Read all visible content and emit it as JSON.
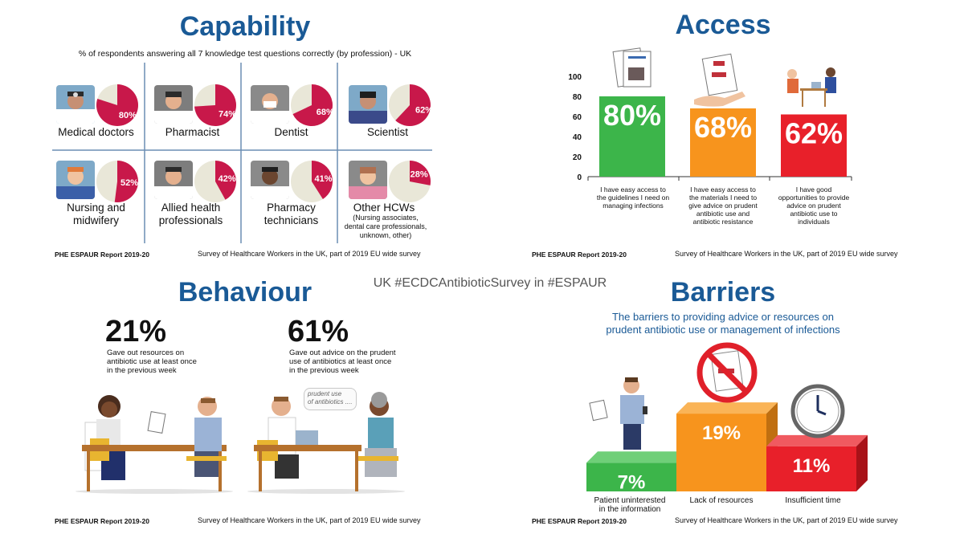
{
  "hashtag": "UK #ECDCAntibioticSurvey in #ESPAUR",
  "footer": {
    "left": "PHE ESPAUR Report 2019-20",
    "right": "Survey of Healthcare Workers in the UK, part of 2019 EU wide survey"
  },
  "capability": {
    "title": "Capability",
    "subtitle": "% of respondents answering all 7 knowledge test questions correctly (by profession) - UK",
    "professions": [
      {
        "label": "Medical doctors",
        "pct_label": "80%",
        "value": 80
      },
      {
        "label": "Pharmacist",
        "pct_label": "74%",
        "value": 74
      },
      {
        "label": "Dentist",
        "pct_label": "68%",
        "value": 68
      },
      {
        "label": "Scientist",
        "pct_label": "62%",
        "value": 62
      },
      {
        "label": "Nursing and midwifery",
        "line1": "Nursing and",
        "line2": "midwifery",
        "pct_label": "52%",
        "value": 52
      },
      {
        "label": "Allied health professionals",
        "line1": "Allied health",
        "line2": "professionals",
        "pct_label": "42%",
        "value": 42
      },
      {
        "label": "Pharmacy technicians",
        "line1": "Pharmacy",
        "line2": "technicians",
        "pct_label": "41%",
        "value": 41
      },
      {
        "label": "Other HCWs",
        "line1": "Other HCWs",
        "note": "(Nursing associates, dental care professionals, unknown, other)",
        "note1": "(Nursing associates,",
        "note2": "dental care professionals,",
        "note3": "unknown, other)",
        "pct_label": "28%",
        "value": 28
      }
    ]
  },
  "access": {
    "title": "Access",
    "cat1": [
      "I have easy access to",
      "the guidelines I need on",
      "managing infections"
    ],
    "cat2": [
      "I have easy access to",
      "the materials I need to",
      "give advice on prudent",
      "antibiotic use and",
      "antibiotic resistance"
    ],
    "cat3": [
      "I have good",
      "opportunities to provide",
      "advice on prudent",
      "antibiotic use to",
      "individuals"
    ]
  },
  "behaviour": {
    "title": "Behaviour",
    "stat1": {
      "pct": "21%",
      "desc1": "Gave out resources on",
      "desc2": "antibiotic use at least once",
      "desc3": "in the previous week"
    },
    "stat2": {
      "pct": "61%",
      "desc1": "Gave out advice on the prudent",
      "desc2": "use of antibiotics at least once",
      "desc3": "in the previous week"
    },
    "bubble1": "prudent use",
    "bubble2": "of antibiotics ...."
  },
  "barriers": {
    "title": "Barriers",
    "subtitle1": "The barriers to providing advice or resources on",
    "subtitle2": "prudent antibiotic use or management of infections",
    "items": [
      {
        "line1": "Patient uninterested",
        "line2": "in the information",
        "pct": "7%"
      },
      {
        "line1": "Lack of resources",
        "pct": "19%"
      },
      {
        "line1": "Insufficient time",
        "pct": "11%"
      }
    ]
  },
  "chart_data": [
    {
      "type": "pie",
      "title": "Capability",
      "subtitle": "% of respondents answering all 7 knowledge test questions correctly (by profession) - UK",
      "categories": [
        "Medical doctors",
        "Pharmacist",
        "Dentist",
        "Scientist",
        "Nursing and midwifery",
        "Allied health professionals",
        "Pharmacy technicians",
        "Other HCWs"
      ],
      "values": [
        80,
        74,
        68,
        62,
        52,
        42,
        41,
        28
      ]
    },
    {
      "type": "bar",
      "title": "Access",
      "categories": [
        "I have easy access to the guidelines I need on managing infections",
        "I have easy access to the materials I need to give advice on prudent antibiotic use and antibiotic resistance",
        "I have good opportunities to provide advice on prudent antibiotic use to individuals"
      ],
      "values": [
        80,
        68,
        62
      ],
      "value_labels": [
        "80%",
        "68%",
        "62%"
      ],
      "ylim": [
        0,
        100
      ],
      "yticks": [
        "0",
        "20",
        "40",
        "60",
        "80",
        "100"
      ],
      "colors": [
        "#3cb54a",
        "#f7941d",
        "#e8202a"
      ]
    },
    {
      "type": "bar",
      "title": "Barriers",
      "categories": [
        "Patient uninterested in the information",
        "Lack of resources",
        "Insufficient time"
      ],
      "values": [
        7,
        19,
        11
      ],
      "value_labels": [
        "7%",
        "19%",
        "11%"
      ],
      "colors": [
        "#3cb54a",
        "#f7941d",
        "#e8202a"
      ]
    }
  ]
}
